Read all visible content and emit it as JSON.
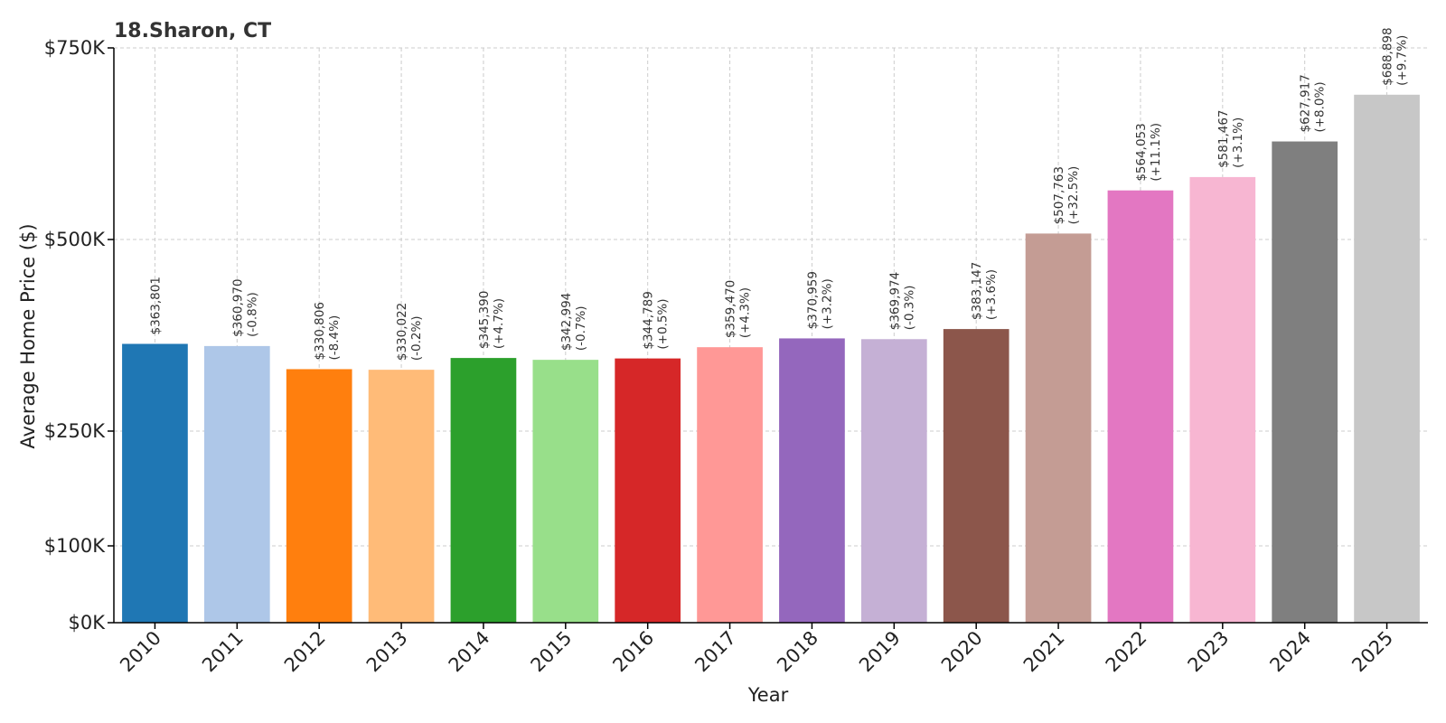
{
  "chart_data": {
    "type": "bar",
    "title": "18.Sharon, CT",
    "xlabel": "Year",
    "ylabel": "Average Home Price ($)",
    "categories": [
      "2010",
      "2011",
      "2012",
      "2013",
      "2014",
      "2015",
      "2016",
      "2017",
      "2018",
      "2019",
      "2020",
      "2021",
      "2022",
      "2023",
      "2024",
      "2025"
    ],
    "values": [
      363801,
      360970,
      330806,
      330022,
      345390,
      342994,
      344789,
      359470,
      370959,
      369974,
      383147,
      507763,
      564053,
      581467,
      627917,
      688898
    ],
    "value_labels": [
      "$363,801",
      "$360,970",
      "$330,806",
      "$330,022",
      "$345,390",
      "$342,994",
      "$344,789",
      "$359,470",
      "$370,959",
      "$369,974",
      "$383,147",
      "$507,763",
      "$564,053",
      "$581,467",
      "$627,917",
      "$688,898"
    ],
    "change_labels": [
      "",
      "(-0.8%)",
      "(-8.4%)",
      "(-0.2%)",
      "(+4.7%)",
      "(-0.7%)",
      "(+0.5%)",
      "(+4.3%)",
      "(+3.2%)",
      "(-0.3%)",
      "(+3.6%)",
      "(+32.5%)",
      "(+11.1%)",
      "(+3.1%)",
      "(+8.0%)",
      "(+9.7%)"
    ],
    "colors": [
      "#1f77b4",
      "#aec7e8",
      "#ff7f0e",
      "#ffbb78",
      "#2ca02c",
      "#98df8a",
      "#d62728",
      "#ff9896",
      "#9467bd",
      "#c5b0d5",
      "#8c564b",
      "#c49c94",
      "#e377c2",
      "#f7b6d2",
      "#7f7f7f",
      "#c7c7c7"
    ],
    "ylim": [
      0,
      750000
    ],
    "yticks": [
      0,
      100000,
      250000,
      500000,
      750000
    ],
    "ytick_labels": [
      "$0K",
      "$100K",
      "$250K",
      "$500K",
      "$750K"
    ],
    "grid": true,
    "legend": "none"
  }
}
